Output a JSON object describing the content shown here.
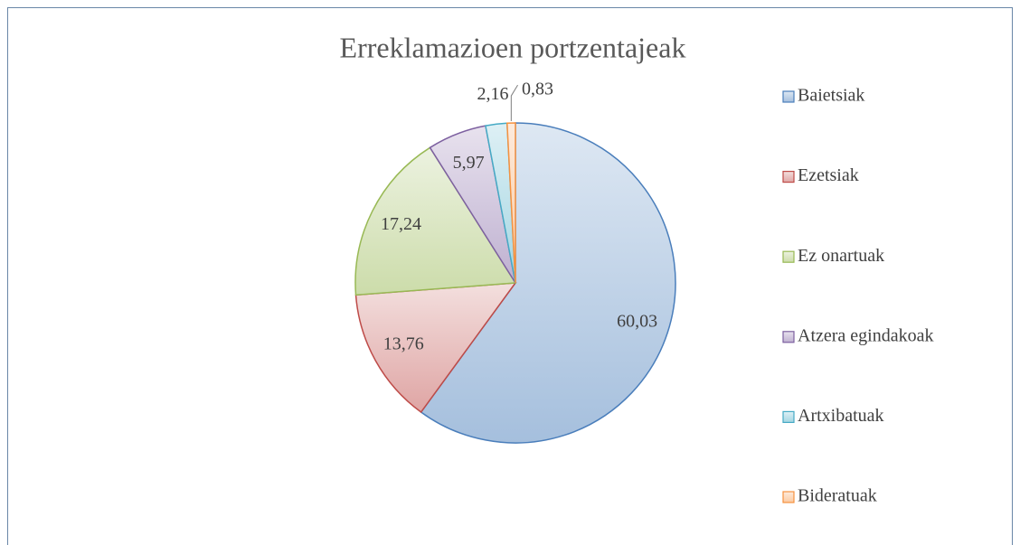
{
  "chart_data": {
    "type": "pie",
    "title": "Erreklamazioen portzentajeak",
    "categories": [
      "Baietsiak",
      "Ezetsiak",
      "Ez onartuak",
      "Atzera egindakoak",
      "Artxibatuak",
      "Bideratuak"
    ],
    "values": [
      60.03,
      13.76,
      17.24,
      5.97,
      2.16,
      0.83
    ],
    "value_labels": [
      "60,03",
      "13,76",
      "17,24",
      "5,97",
      "2,16",
      "0,83"
    ],
    "colors": [
      "#4a7ebb",
      "#be4b48",
      "#98b954",
      "#7d60a0",
      "#46aac5",
      "#f69240"
    ],
    "legend": "right"
  }
}
